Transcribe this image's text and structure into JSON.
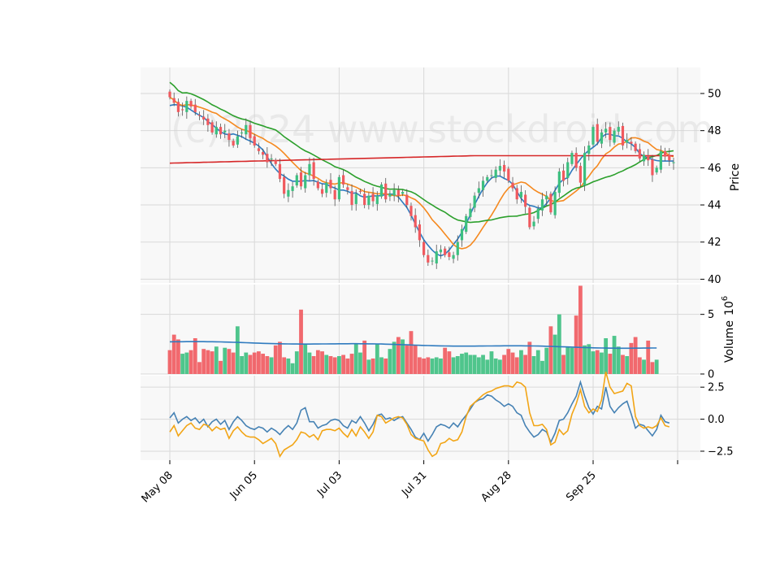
{
  "watermark": "(c)2024 www.stockdroid.com",
  "chart_data": {
    "type": "candlestick",
    "x_tick_labels": [
      "May 08",
      "Jun 05",
      "Jul 03",
      "Jul 31",
      "Aug 28",
      "Sep 25"
    ],
    "x_tick_index": [
      0,
      20,
      40,
      60,
      80,
      100
    ],
    "price_panel": {
      "ylabel": "Price",
      "ylim": [
        39.8,
        51.4
      ],
      "yticks": [
        40,
        42,
        44,
        46,
        48,
        50
      ],
      "colors": {
        "up": "#3cbf7f",
        "down": "#f0595e"
      },
      "closes": [
        49.8,
        49.5,
        49.0,
        49.1,
        49.6,
        49.3,
        49.0,
        48.8,
        48.6,
        48.3,
        47.9,
        48.2,
        47.8,
        48.0,
        47.5,
        47.2,
        47.7,
        47.9,
        48.3,
        47.6,
        47.2,
        46.9,
        46.7,
        46.3,
        46.5,
        46.2,
        45.4,
        44.6,
        44.8,
        45.0,
        45.6,
        45.0,
        45.6,
        46.2,
        45.4,
        44.9,
        44.6,
        45.2,
        44.9,
        44.3,
        45.5,
        45.1,
        44.8,
        44.0,
        44.6,
        44.7,
        44.0,
        44.5,
        44.2,
        44.5,
        45.1,
        44.3,
        44.6,
        44.8,
        44.5,
        44.7,
        44.0,
        43.4,
        42.8,
        42.1,
        41.3,
        40.9,
        41.0,
        41.5,
        41.6,
        41.3,
        41.2,
        41.3,
        42.0,
        42.7,
        43.4,
        43.8,
        44.5,
        44.9,
        45.3,
        45.5,
        45.6,
        45.9,
        46.1,
        45.8,
        45.3,
        44.9,
        44.3,
        44.7,
        43.9,
        42.8,
        43.1,
        43.8,
        44.3,
        44.5,
        43.6,
        44.7,
        45.8,
        45.3,
        46.3,
        46.8,
        46.0,
        45.2,
        46.8,
        47.2,
        48.2,
        47.4,
        47.9,
        48.1,
        47.5,
        48.0,
        48.2,
        47.2,
        47.5,
        47.3,
        46.9,
        46.5,
        46.7,
        46.4,
        45.6,
        46.0,
        46.9,
        46.6,
        46.4,
        46.3
      ],
      "overlays": [
        {
          "key": "short_ma",
          "color": "#2f7bbf"
        },
        {
          "key": "mid_ma",
          "color": "#f5891f"
        },
        {
          "key": "long_ma",
          "color": "#2ca02c"
        },
        {
          "key": "trend",
          "color": "#d62728"
        }
      ],
      "trend_line": [
        46.25,
        46.65
      ]
    },
    "volume_panel": {
      "ylabel": "Volume",
      "yscale_label": "10",
      "yscale_exp": "6",
      "ylim": [
        0,
        7.5
      ],
      "yticks": [
        0,
        5
      ],
      "values": [
        2.0,
        3.3,
        2.9,
        1.7,
        1.8,
        2.0,
        3.0,
        1.0,
        2.1,
        2.0,
        1.9,
        2.3,
        1.1,
        2.2,
        2.1,
        1.8,
        4.0,
        1.5,
        1.8,
        1.6,
        1.8,
        1.9,
        1.7,
        1.5,
        1.4,
        2.4,
        2.7,
        1.4,
        1.3,
        0.9,
        1.9,
        5.4,
        2.5,
        1.8,
        1.5,
        2.0,
        1.9,
        1.6,
        1.5,
        1.4,
        1.5,
        1.6,
        1.3,
        1.7,
        2.5,
        1.8,
        2.8,
        1.2,
        1.3,
        2.5,
        1.4,
        1.3,
        2.1,
        2.7,
        3.1,
        2.9,
        2.4,
        3.6,
        2.4,
        1.4,
        1.3,
        1.4,
        1.3,
        1.4,
        1.3,
        2.2,
        1.9,
        1.4,
        1.5,
        1.7,
        1.8,
        1.6,
        1.6,
        1.4,
        1.6,
        1.2,
        1.9,
        1.3,
        1.2,
        1.6,
        2.1,
        1.8,
        1.4,
        2.0,
        1.6,
        2.7,
        1.5,
        2.0,
        1.1,
        2.2,
        4.0,
        3.3,
        5.0,
        1.6,
        2.3,
        2.2,
        4.9,
        7.4,
        2.4,
        2.5,
        1.9,
        2.0,
        1.8,
        3.0,
        1.7,
        3.2,
        2.3,
        1.6,
        1.5,
        2.6,
        3.1,
        1.4,
        1.2,
        2.8,
        1.0,
        1.2
      ],
      "avg_volume": [
        2.7,
        2.15
      ],
      "avg_color": "#2f7bbf"
    },
    "oscillator_panel": {
      "ylim": [
        -3.2,
        3.4
      ],
      "yticks": [
        2.5,
        0.0,
        -2.5
      ],
      "ytick_labels": [
        "2.5",
        "0.0",
        "−2.5"
      ],
      "series": [
        {
          "color": "#4682b4",
          "values": [
            0.1,
            0.5,
            -0.3,
            0.0,
            0.2,
            -0.1,
            0.1,
            -0.3,
            0.0,
            -0.6,
            -0.2,
            0.0,
            -0.4,
            -0.1,
            -0.8,
            -0.2,
            0.2,
            -0.1,
            -0.5,
            -0.7,
            -0.8,
            -0.6,
            -0.7,
            -1.0,
            -0.7,
            -0.9,
            -1.2,
            -0.8,
            -0.5,
            -0.8,
            -0.3,
            0.7,
            0.9,
            -0.2,
            -0.2,
            -0.7,
            -0.5,
            -0.4,
            -0.1,
            0.0,
            -0.1,
            -0.5,
            -0.7,
            -0.1,
            -0.3,
            0.2,
            -0.3,
            -0.9,
            -0.4,
            0.3,
            0.4,
            0.0,
            0.1,
            -0.1,
            0.1,
            0.2,
            -0.3,
            -0.8,
            -1.4,
            -1.6,
            -1.1,
            -1.7,
            -1.2,
            -0.6,
            -0.4,
            -0.5,
            -0.7,
            -0.3,
            -0.6,
            -0.1,
            0.3,
            0.8,
            1.3,
            1.5,
            1.6,
            1.9,
            1.8,
            1.5,
            1.3,
            1.0,
            1.2,
            1.0,
            0.5,
            0.3,
            -0.5,
            -1.0,
            -1.4,
            -1.2,
            -0.8,
            -1.0,
            -1.8,
            -1.1,
            -0.1,
            0.0,
            0.5,
            1.2,
            1.8,
            2.9,
            1.8,
            0.9,
            0.4,
            1.0,
            0.8,
            2.5,
            1.0,
            0.5,
            0.9,
            1.2,
            1.4,
            0.4,
            -0.7,
            -0.4,
            -0.5,
            -0.9,
            -1.3,
            -0.8,
            0.3,
            -0.2,
            -0.3
          ]
        },
        {
          "color": "#f2a516",
          "values": [
            -1.0,
            -0.5,
            -1.3,
            -0.9,
            -0.5,
            -0.3,
            -0.7,
            -0.8,
            -0.4,
            -0.5,
            -0.9,
            -0.6,
            -0.8,
            -0.7,
            -1.5,
            -0.9,
            -0.6,
            -1.0,
            -1.3,
            -1.4,
            -1.4,
            -1.6,
            -1.9,
            -1.7,
            -1.5,
            -1.9,
            -2.9,
            -2.4,
            -2.2,
            -2.0,
            -1.6,
            -1.0,
            -1.1,
            -1.4,
            -1.2,
            -1.6,
            -0.9,
            -0.8,
            -0.8,
            -0.9,
            -0.7,
            -1.1,
            -1.4,
            -0.8,
            -1.3,
            -0.6,
            -1.0,
            -1.5,
            -1.0,
            0.3,
            0.2,
            -0.3,
            -0.1,
            0.1,
            0.2,
            0.1,
            -0.4,
            -1.2,
            -1.5,
            -1.6,
            -1.7,
            -2.4,
            -2.9,
            -2.7,
            -1.9,
            -1.8,
            -1.5,
            -1.7,
            -1.6,
            -1.0,
            0.2,
            1.0,
            1.3,
            1.6,
            1.9,
            2.1,
            2.2,
            2.4,
            2.5,
            2.6,
            2.6,
            2.5,
            2.9,
            2.8,
            2.5,
            0.5,
            -0.5,
            -0.5,
            -0.4,
            -0.8,
            -2.0,
            -1.8,
            -0.8,
            -1.2,
            -0.9,
            0.4,
            1.2,
            2.3,
            1.0,
            0.5,
            0.8,
            0.6,
            1.5,
            3.7,
            2.5,
            2.0,
            2.1,
            2.2,
            2.8,
            2.6,
            0.2,
            -0.5,
            -0.7,
            -0.6,
            -0.7,
            -0.5,
            0.1,
            -0.5,
            -0.6
          ]
        }
      ]
    }
  }
}
